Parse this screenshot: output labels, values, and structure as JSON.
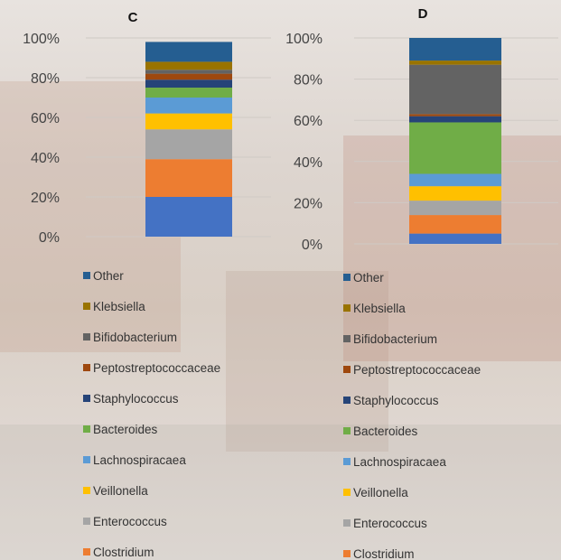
{
  "chart_data": [
    {
      "type": "bar",
      "stacked": true,
      "title": "C",
      "ylim": [
        0,
        100
      ],
      "yticks": [
        "0%",
        "20%",
        "40%",
        "60%",
        "80%",
        "100%"
      ],
      "grid": true,
      "legend_position": "bottom",
      "series": [
        {
          "name": "Clostridium",
          "values": [
            19
          ],
          "color": "#ED7D31"
        },
        {
          "name": "Enterococcus",
          "values": [
            15
          ],
          "color": "#A5A5A5"
        },
        {
          "name": "Veillonella",
          "values": [
            8
          ],
          "color": "#FFC000"
        },
        {
          "name": "Lachnospiracaea",
          "values": [
            8
          ],
          "color": "#5B9BD5"
        },
        {
          "name": "Bacteroides",
          "values": [
            5
          ],
          "color": "#70AD47"
        },
        {
          "name": "Staphylococcus",
          "values": [
            4
          ],
          "color": "#264478"
        },
        {
          "name": "Peptostreptococcaceae",
          "values": [
            3
          ],
          "color": "#9E480E"
        },
        {
          "name": "Bifidobacterium",
          "values": [
            2
          ],
          "color": "#636363"
        },
        {
          "name": "Klebsiella",
          "values": [
            4
          ],
          "color": "#997300"
        },
        {
          "name": "Other",
          "values": [
            10
          ],
          "color": "#255E91"
        }
      ],
      "base_series": {
        "name": "",
        "values": [
          20
        ],
        "color": "#4472C4"
      }
    },
    {
      "type": "bar",
      "stacked": true,
      "title": "D",
      "ylim": [
        0,
        100
      ],
      "yticks": [
        "0%",
        "20%",
        "40%",
        "60%",
        "80%",
        "100%"
      ],
      "grid": true,
      "legend_position": "bottom",
      "series": [
        {
          "name": "Clostridium",
          "values": [
            9
          ],
          "color": "#ED7D31"
        },
        {
          "name": "Enterococcus",
          "values": [
            7
          ],
          "color": "#A5A5A5"
        },
        {
          "name": "Veillonella",
          "values": [
            7
          ],
          "color": "#FFC000"
        },
        {
          "name": "Lachnospiracaea",
          "values": [
            6
          ],
          "color": "#5B9BD5"
        },
        {
          "name": "Bacteroides",
          "values": [
            25
          ],
          "color": "#70AD47"
        },
        {
          "name": "Staphylococcus",
          "values": [
            3
          ],
          "color": "#264478"
        },
        {
          "name": "Peptostreptococcaceae",
          "values": [
            1
          ],
          "color": "#9E480E"
        },
        {
          "name": "Bifidobacterium",
          "values": [
            24
          ],
          "color": "#636363"
        },
        {
          "name": "Klebsiella",
          "values": [
            2
          ],
          "color": "#997300"
        },
        {
          "name": "Other",
          "values": [
            11
          ],
          "color": "#255E91"
        }
      ],
      "base_series": {
        "name": "",
        "values": [
          5
        ],
        "color": "#4472C4"
      }
    }
  ]
}
